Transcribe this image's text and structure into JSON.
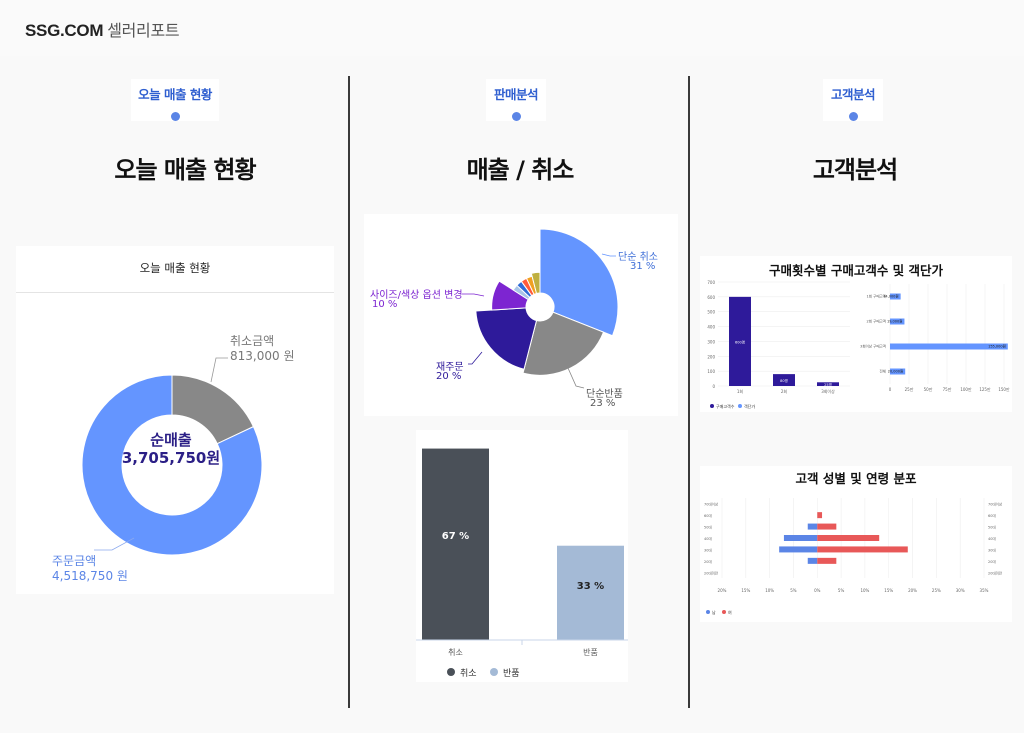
{
  "header": {
    "brand": "SSG.COM",
    "subtitle": "셀러리포트"
  },
  "tabs": [
    {
      "label": "오늘 매출 현황"
    },
    {
      "label": "판매분석"
    },
    {
      "label": "고객분석"
    }
  ],
  "columns": {
    "sales": {
      "title": "오늘 매출 현황",
      "panel_title": "오늘 매출 현황",
      "center_label": "순매출",
      "center_value": "3,705,750원",
      "cancel_label": "취소금액",
      "cancel_value": "813,000 원",
      "order_label": "주문금액",
      "order_value": "4,518,750 원"
    },
    "analysis": {
      "title": "매출 / 취소"
    },
    "customer": {
      "title": "고객분석",
      "chart1_title": "구매횟수별 구매고객수 및 객단가",
      "chart2_title": "고객 성별 및 연령 분포"
    }
  },
  "chart_data": [
    {
      "type": "pie",
      "title": "",
      "labels": [
        "순매출",
        "취소금액"
      ],
      "values": [
        3705750,
        813000
      ],
      "colors": [
        "#6495ff",
        "#888888"
      ]
    },
    {
      "type": "pie",
      "title": "",
      "labels": [
        "단순 취소",
        "단순반품",
        "재주문",
        "사이즈/색상 옵션 변경",
        "",
        "",
        "",
        "",
        ""
      ],
      "values": [
        31,
        23,
        20,
        10,
        3,
        3,
        3,
        3,
        4
      ],
      "display": [
        "31 %",
        "23 %",
        "20 %",
        "10 %",
        "",
        "",
        "",
        "",
        ""
      ],
      "colors": [
        "#6495ff",
        "#888888",
        "#2e1a9a",
        "#7d25d1",
        "#a9c4e8",
        "#2f6bd8",
        "#ff5a3c",
        "#f0a020",
        "#bfb040"
      ]
    },
    {
      "type": "bar",
      "title": "",
      "categories": [
        "취소",
        "반품"
      ],
      "values": [
        67,
        33
      ],
      "value_labels": [
        "67 %",
        "33 %"
      ],
      "legend": [
        "취소",
        "반품"
      ],
      "colors": [
        "#4a5058",
        "#a4bad6"
      ],
      "ylim": [
        0,
        70
      ]
    },
    {
      "type": "bar",
      "title": "구매횟수별 구매고객수 및 객단가",
      "left": {
        "categories": [
          "1회",
          "2회",
          "3회이상"
        ],
        "values": [
          600,
          80,
          25
        ],
        "value_labels": [
          "600명",
          "80명",
          "25명"
        ],
        "yticks": [
          "0",
          "100",
          "200",
          "300",
          "400",
          "500",
          "600",
          "700"
        ],
        "ylim": [
          0,
          700
        ]
      },
      "right": {
        "categories": [
          "1회 구매고객",
          "2회 구매고객",
          "3회이상 구매고객",
          "전체"
        ],
        "values": [
          14000,
          19000,
          155000,
          20000
        ],
        "value_labels": [
          "14,000원",
          "19,000원",
          "155,000원",
          "20,000원"
        ],
        "xticks": [
          "0",
          "25만",
          "50만",
          "75만",
          "100만",
          "125만",
          "150만"
        ],
        "xlim": [
          0,
          150000
        ]
      },
      "legend": [
        "구매고객수",
        "객단가"
      ],
      "colors": [
        "#2e1a9a",
        "#6495ff"
      ]
    },
    {
      "type": "bar",
      "title": "고객 성별 및 연령 분포",
      "categories": [
        "70대이상",
        "60대",
        "50대",
        "40대",
        "30대",
        "20대",
        "20대미만"
      ],
      "series": [
        {
          "name": "남",
          "values": [
            0,
            0,
            2,
            7,
            8,
            2,
            0
          ]
        },
        {
          "name": "여",
          "values": [
            0,
            1,
            4,
            13,
            19,
            4,
            0
          ]
        }
      ],
      "xticks": [
        "20%",
        "15%",
        "10%",
        "5%",
        "0%",
        "5%",
        "10%",
        "15%",
        "20%",
        "25%",
        "30%",
        "35%"
      ],
      "xlim": [
        -20,
        35
      ],
      "colors": [
        "#5b85e6",
        "#e85858"
      ]
    }
  ]
}
